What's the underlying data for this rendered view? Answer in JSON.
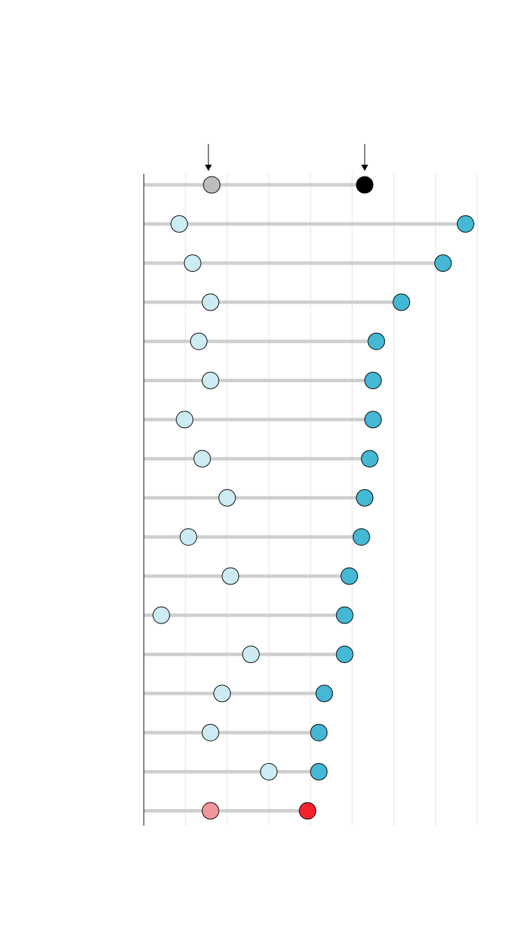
{
  "chart_data": {
    "type": "dumbbell",
    "xlim": [
      0,
      8
    ],
    "xticks": [
      0,
      1,
      2,
      3,
      4,
      5,
      6,
      7,
      8
    ],
    "grid": true,
    "series": [
      {
        "colors": [
          "#bdbdbd",
          "#cdebf2",
          "#cdebf2",
          "#cdebf2",
          "#cdebf2",
          "#cdebf2",
          "#cdebf2",
          "#cdebf2",
          "#cdebf2",
          "#cdebf2",
          "#cdebf2",
          "#cdebf2",
          "#cdebf2",
          "#cdebf2",
          "#cdebf2",
          "#cdebf2",
          "#f4949c"
        ],
        "values": [
          1.63,
          0.85,
          1.17,
          1.6,
          1.32,
          1.6,
          0.98,
          1.4,
          2.0,
          1.07,
          2.08,
          0.42,
          2.57,
          1.88,
          1.6,
          3.0,
          1.6
        ]
      },
      {
        "colors": [
          "#000000",
          "#44b8d4",
          "#44b8d4",
          "#44b8d4",
          "#44b8d4",
          "#44b8d4",
          "#44b8d4",
          "#44b8d4",
          "#44b8d4",
          "#44b8d4",
          "#44b8d4",
          "#44b8d4",
          "#44b8d4",
          "#44b8d4",
          "#44b8d4",
          "#44b8d4",
          "#f5222d"
        ],
        "values": [
          5.3,
          7.72,
          7.18,
          6.18,
          5.58,
          5.5,
          5.5,
          5.42,
          5.3,
          5.22,
          4.93,
          4.82,
          4.82,
          4.33,
          4.2,
          4.2,
          3.93
        ]
      }
    ]
  }
}
